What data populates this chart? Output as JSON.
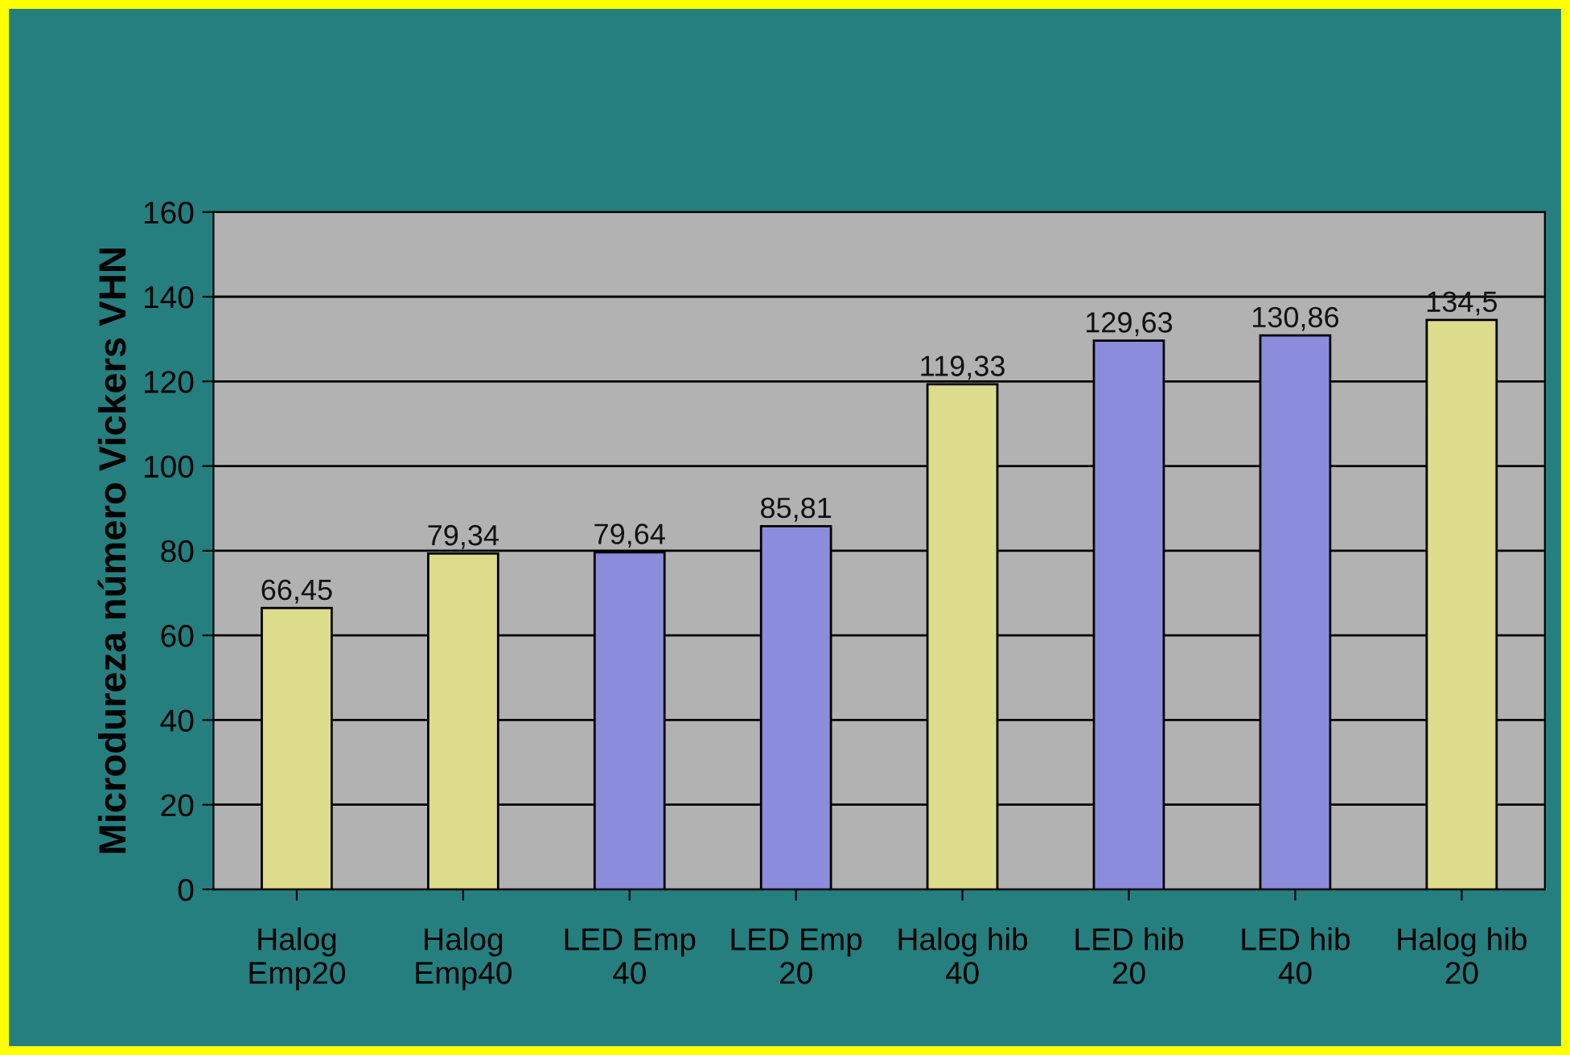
{
  "chart_data": {
    "type": "bar",
    "ylabel": "Microdureza número Vickers VHN",
    "categories": [
      "Halog\nEmp20",
      "Halog\nEmp40",
      "LED Emp\n40",
      "LED Emp\n20",
      "Halog hib\n40",
      "LED hib\n20",
      "LED hib\n40",
      "Halog hib\n20"
    ],
    "values": [
      66.45,
      79.34,
      79.64,
      85.81,
      119.33,
      129.63,
      130.86,
      134.5
    ],
    "colors": [
      "#dcdc8c",
      "#dcdc8c",
      "#8c8cdc",
      "#8c8cdc",
      "#dcdc8c",
      "#8c8cdc",
      "#8c8cdc",
      "#dcdc8c"
    ],
    "value_labels": [
      "66,45",
      "79,34",
      "79,64",
      "85,81",
      "119,33",
      "129,63",
      "130,86",
      "134,5"
    ],
    "ylim": [
      0,
      160
    ],
    "yticks": [
      0,
      20,
      40,
      60,
      80,
      100,
      120,
      140,
      160
    ],
    "grid": "y"
  }
}
